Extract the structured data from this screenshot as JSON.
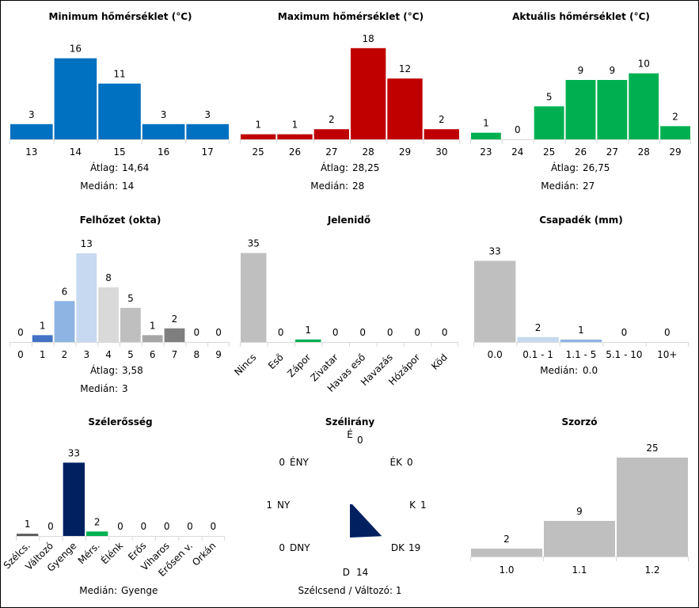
{
  "chart_data": [
    {
      "id": "min_temp",
      "type": "bar",
      "title": "Minimum hőmérséklet (°C)",
      "categories": [
        "13",
        "14",
        "15",
        "16",
        "17"
      ],
      "values": [
        3,
        16,
        11,
        3,
        3
      ],
      "colors": [
        "#0070C0",
        "#0070C0",
        "#0070C0",
        "#0070C0",
        "#0070C0"
      ],
      "ylim": [
        0,
        20
      ],
      "stats": [
        {
          "label": "Átlag:",
          "value": "14,64"
        },
        {
          "label": "Medián:",
          "value": "14"
        }
      ]
    },
    {
      "id": "max_temp",
      "type": "bar",
      "title": "Maximum hőmérséklet (°C)",
      "categories": [
        "25",
        "26",
        "27",
        "28",
        "29",
        "30"
      ],
      "values": [
        1,
        1,
        2,
        18,
        12,
        2
      ],
      "colors": [
        "#C00000",
        "#C00000",
        "#C00000",
        "#C00000",
        "#C00000",
        "#C00000"
      ],
      "ylim": [
        0,
        20
      ],
      "stats": [
        {
          "label": "Átlag:",
          "value": "28,25"
        },
        {
          "label": "Medián:",
          "value": "28"
        }
      ]
    },
    {
      "id": "cur_temp",
      "type": "bar",
      "title": "Aktuális hőmérséklet (°C)",
      "categories": [
        "23",
        "24",
        "25",
        "26",
        "27",
        "28",
        "29"
      ],
      "values": [
        1,
        0,
        5,
        9,
        9,
        10,
        2
      ],
      "colors": [
        "#00B050",
        "#00B050",
        "#00B050",
        "#00B050",
        "#00B050",
        "#00B050",
        "#00B050"
      ],
      "ylim": [
        0,
        12
      ],
      "stats": [
        {
          "label": "Átlag:",
          "value": "26,75"
        },
        {
          "label": "Medián:",
          "value": "27"
        }
      ]
    },
    {
      "id": "cloud",
      "type": "bar",
      "title": "Felhőzet (okta)",
      "categories": [
        "0",
        "1",
        "2",
        "3",
        "4",
        "5",
        "6",
        "7",
        "8",
        "9"
      ],
      "values": [
        0,
        1,
        6,
        13,
        8,
        5,
        1,
        2,
        0,
        0
      ],
      "colors": [
        "#4472C4",
        "#4472C4",
        "#8EB4E3",
        "#C6D9F0",
        "#D9D9D9",
        "#BFBFBF",
        "#A6A6A6",
        "#7F7F7F",
        "#595959",
        "#404040"
      ],
      "ylim": [
        0,
        14.5
      ],
      "stats": [
        {
          "label": "Átlag:",
          "value": "3,58"
        },
        {
          "label": "Medián:",
          "value": "3"
        }
      ]
    },
    {
      "id": "weather",
      "type": "bar",
      "title": "Jelenidő",
      "categories": [
        "Nincs",
        "Eső",
        "Zápor",
        "Zivatar",
        "Havas eső",
        "Havazás",
        "Hózápor",
        "Köd"
      ],
      "values": [
        35,
        0,
        1,
        0,
        0,
        0,
        0,
        0
      ],
      "colors": [
        "#BFBFBF",
        "#BFBFBF",
        "#00B050",
        "#BFBFBF",
        "#BFBFBF",
        "#BFBFBF",
        "#BFBFBF",
        "#BFBFBF"
      ],
      "ylim": [
        0,
        38
      ],
      "stats": []
    },
    {
      "id": "precip",
      "type": "bar",
      "title": "Csapadék (mm)",
      "categories": [
        "0.0",
        "0.1 - 1",
        "1.1 - 5",
        "5.1 - 10",
        "10+"
      ],
      "values": [
        33,
        2,
        1,
        0,
        0
      ],
      "colors": [
        "#BFBFBF",
        "#C6D9F0",
        "#8EB4E3",
        "#4472C4",
        "#1F3864"
      ],
      "ylim": [
        0,
        38
      ],
      "stats": [
        {
          "label": "Medián:",
          "value": "0.0"
        }
      ]
    },
    {
      "id": "wind_strength",
      "type": "bar",
      "title": "Szélerősség",
      "categories": [
        "Szélcs.",
        "Változó",
        "Gyenge",
        "Mérs.",
        "Élénk",
        "Erős",
        "Viharos",
        "Erősen v.",
        "Orkán"
      ],
      "values": [
        1,
        0,
        33,
        2,
        0,
        0,
        0,
        0,
        0
      ],
      "colors": [
        "#595959",
        "#595959",
        "#002060",
        "#00B050",
        "#00B050",
        "#00B050",
        "#00B050",
        "#00B050",
        "#00B050"
      ],
      "ylim": [
        0,
        36
      ],
      "stats": [
        {
          "label": "Medián:",
          "value": "Gyenge"
        }
      ]
    },
    {
      "id": "wind_dir",
      "type": "radar",
      "title": "Szélirány",
      "directions": [
        {
          "label": "É",
          "value": 0
        },
        {
          "label": "ÉK",
          "value": 0
        },
        {
          "label": "K",
          "value": 1
        },
        {
          "label": "DK",
          "value": 19
        },
        {
          "label": "D",
          "value": 14
        },
        {
          "label": "DNY",
          "value": 0
        },
        {
          "label": "NY",
          "value": 1
        },
        {
          "label": "ÉNY",
          "value": 0
        }
      ],
      "max": 19,
      "color": "#002060",
      "footer": "Szélcsend / Változó: 1"
    },
    {
      "id": "multiplier",
      "type": "bar",
      "title": "Szorzó",
      "categories": [
        "1.0",
        "1.1",
        "1.2"
      ],
      "values": [
        2,
        9,
        25
      ],
      "colors": [
        "#BFBFBF",
        "#BFBFBF",
        "#BFBFBF"
      ],
      "ylim": [
        0,
        25
      ],
      "stats": []
    }
  ]
}
